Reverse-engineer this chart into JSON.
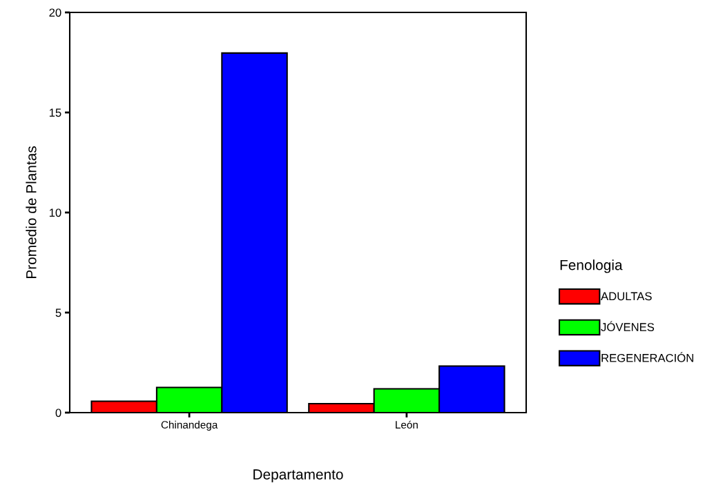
{
  "chart_data": {
    "type": "bar",
    "xlabel": "Departamento",
    "ylabel": "Promedio de Plantas",
    "legend_title": "Fenologia",
    "categories": [
      "Chinandega",
      "León"
    ],
    "series": [
      {
        "name": "ADULTAS",
        "color": "#ff0000",
        "values": [
          0.57,
          0.45
        ]
      },
      {
        "name": "JÓVENES",
        "color": "#00ff00",
        "values": [
          1.26,
          1.19
        ]
      },
      {
        "name": "REGENERACIÓN",
        "color": "#0000ff",
        "values": [
          17.97,
          2.33
        ]
      }
    ],
    "ylim": [
      0,
      20
    ],
    "yticks": [
      0,
      5,
      10,
      15,
      20
    ],
    "grid": false,
    "legend": "right"
  }
}
